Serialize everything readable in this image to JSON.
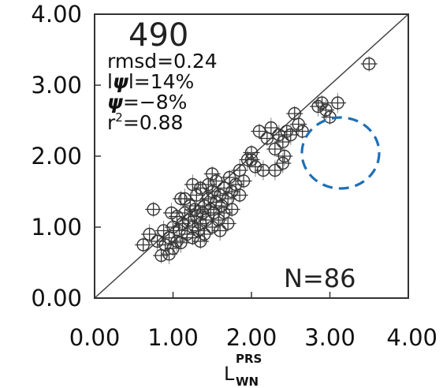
{
  "chart_data": {
    "type": "scatter",
    "title": "490",
    "xlabel": "L",
    "xlabel_superscript": "PRS",
    "xlabel_subscript": "WN",
    "ylabel": "",
    "xlim": [
      0,
      4
    ],
    "ylim": [
      0,
      4
    ],
    "x_ticks": [
      "0.00",
      "1.00",
      "2.00",
      "3.00",
      "4.00"
    ],
    "y_ticks": [
      "0.00",
      "1.00",
      "2.00",
      "3.00",
      "4.00"
    ],
    "grid": false,
    "reference_line": "1:1",
    "stats": {
      "rmsd": "rmsd=0.24",
      "abs_psi": "=14%",
      "psi": "=−8%",
      "r2": "=0.88"
    },
    "n_label": "N=86",
    "annotation": "dashed blue circle (empty region)",
    "accent_color": "#1f6fb5",
    "points": [
      [
        0.62,
        0.75
      ],
      [
        0.7,
        0.9
      ],
      [
        0.75,
        1.25
      ],
      [
        0.8,
        0.8
      ],
      [
        0.85,
        0.6
      ],
      [
        0.88,
        0.95
      ],
      [
        0.9,
        0.75
      ],
      [
        0.95,
        0.62
      ],
      [
        0.95,
        0.85
      ],
      [
        1.0,
        1.0
      ],
      [
        1.0,
        0.7
      ],
      [
        1.05,
        0.8
      ],
      [
        1.05,
        1.15
      ],
      [
        1.08,
        0.95
      ],
      [
        1.1,
        1.4
      ],
      [
        1.1,
        0.78
      ],
      [
        1.12,
        1.05
      ],
      [
        1.15,
        1.2
      ],
      [
        1.18,
        0.9
      ],
      [
        1.2,
        1.1
      ],
      [
        1.22,
        1.3
      ],
      [
        1.25,
        1.0
      ],
      [
        1.25,
        0.85
      ],
      [
        1.28,
        1.25
      ],
      [
        1.3,
        1.15
      ],
      [
        1.3,
        1.45
      ],
      [
        1.32,
        0.95
      ],
      [
        1.35,
        1.05
      ],
      [
        1.35,
        1.55
      ],
      [
        1.38,
        1.2
      ],
      [
        1.4,
        1.3
      ],
      [
        1.4,
        0.9
      ],
      [
        1.42,
        1.1
      ],
      [
        1.45,
        1.4
      ],
      [
        1.45,
        1.6
      ],
      [
        1.48,
        1.25
      ],
      [
        1.5,
        1.0
      ],
      [
        1.5,
        1.5
      ],
      [
        1.52,
        1.2
      ],
      [
        1.55,
        1.35
      ],
      [
        1.55,
        1.65
      ],
      [
        1.58,
        1.1
      ],
      [
        1.6,
        1.45
      ],
      [
        1.6,
        0.95
      ],
      [
        1.62,
        1.3
      ],
      [
        1.65,
        1.55
      ],
      [
        1.65,
        1.2
      ],
      [
        1.7,
        1.4
      ],
      [
        1.72,
        1.7
      ],
      [
        1.75,
        1.5
      ],
      [
        1.75,
        1.25
      ],
      [
        1.8,
        1.6
      ],
      [
        1.85,
        1.45
      ],
      [
        1.85,
        1.8
      ],
      [
        1.9,
        1.65
      ],
      [
        1.95,
        1.95
      ],
      [
        2.0,
        2.05
      ],
      [
        2.05,
        1.85
      ],
      [
        2.1,
        2.35
      ],
      [
        2.15,
        1.8
      ],
      [
        2.2,
        2.25
      ],
      [
        2.25,
        2.4
      ],
      [
        2.3,
        2.1
      ],
      [
        2.35,
        2.3
      ],
      [
        2.4,
        2.2
      ],
      [
        2.4,
        1.9
      ],
      [
        2.45,
        2.35
      ],
      [
        2.5,
        2.3
      ],
      [
        2.55,
        2.6
      ],
      [
        2.6,
        2.45
      ],
      [
        2.65,
        2.35
      ],
      [
        2.85,
        2.7
      ],
      [
        2.9,
        2.75
      ],
      [
        2.95,
        2.65
      ],
      [
        3.0,
        2.55
      ],
      [
        3.1,
        2.75
      ],
      [
        3.5,
        3.3
      ],
      [
        2.3,
        1.8
      ],
      [
        1.35,
        0.8
      ],
      [
        1.15,
        1.4
      ],
      [
        1.5,
        1.75
      ],
      [
        0.98,
        1.2
      ],
      [
        2.0,
        1.95
      ],
      [
        1.25,
        1.6
      ],
      [
        1.7,
        1.05
      ],
      [
        2.42,
        2.0
      ]
    ]
  }
}
